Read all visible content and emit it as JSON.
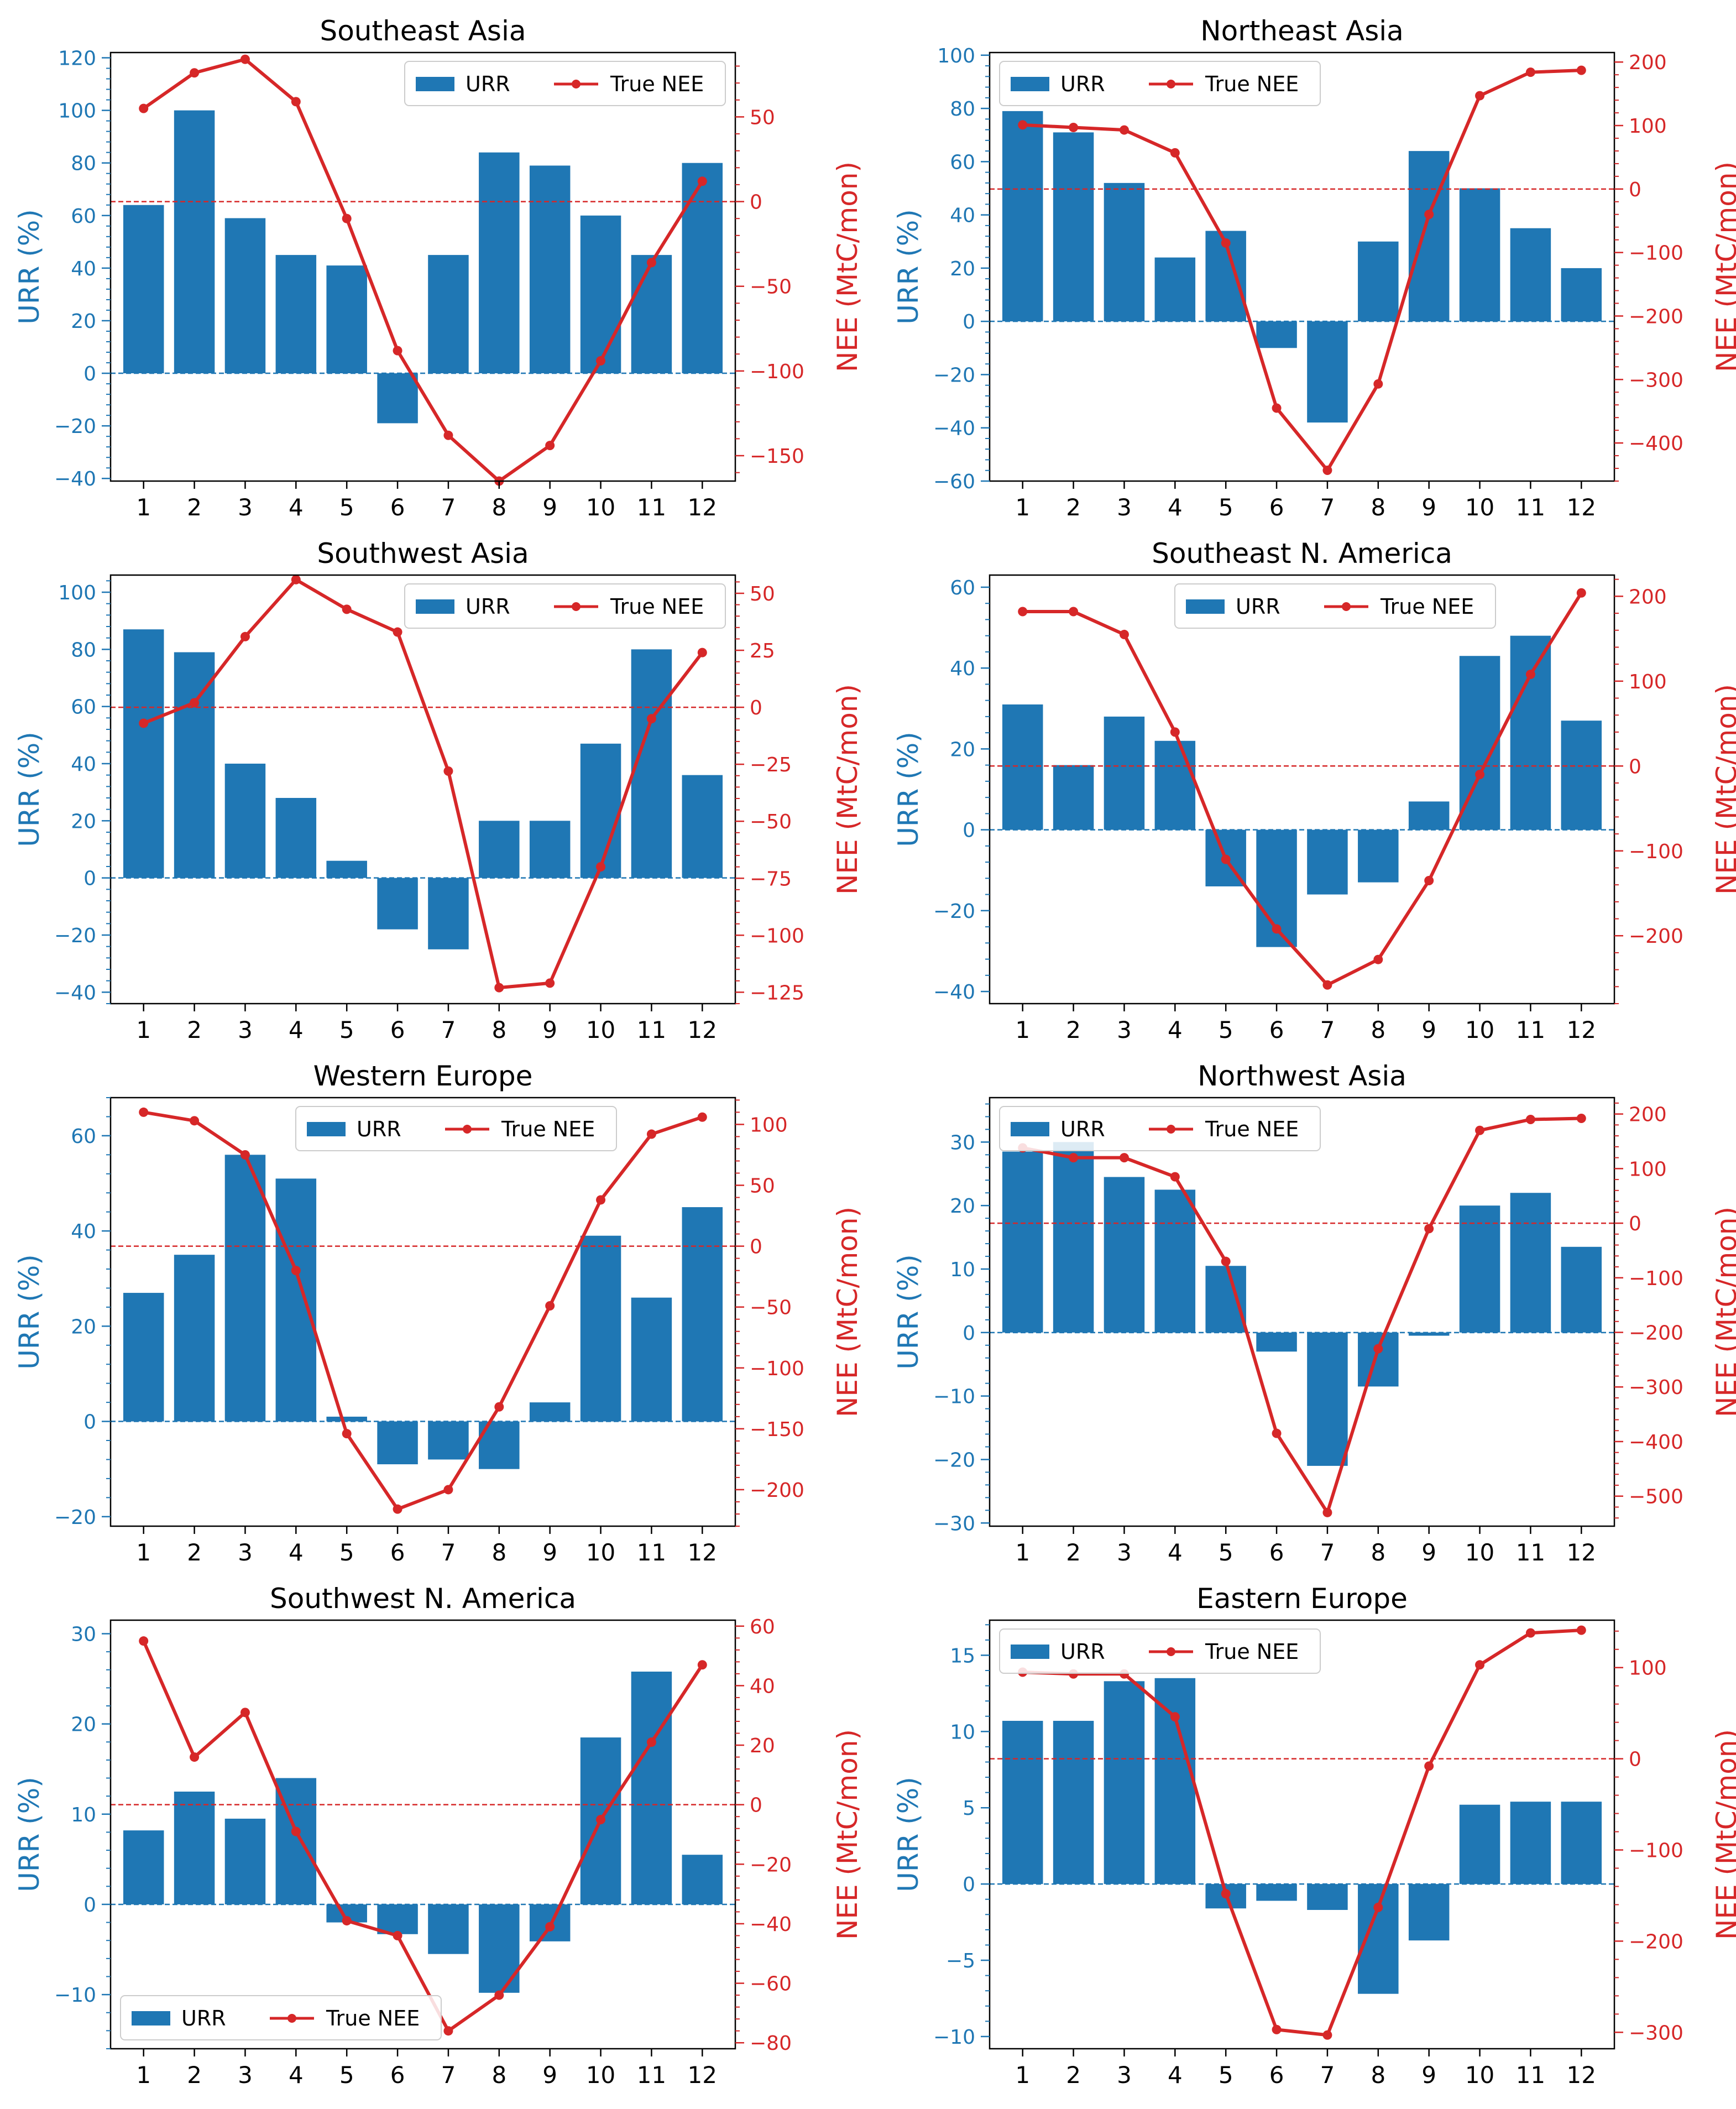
{
  "colors": {
    "urr": "#1f77b4",
    "nee": "#d62728",
    "axis": "#000000"
  },
  "legend_labels": {
    "bar": "URR",
    "line": "True NEE"
  },
  "chart_data": [
    {
      "type": "bar",
      "title": "Southeast Asia",
      "ylabel": "URR (%)",
      "y2label": "NEE (MtC/mon)",
      "categories": [
        "1",
        "2",
        "3",
        "4",
        "5",
        "6",
        "7",
        "8",
        "9",
        "10",
        "11",
        "12"
      ],
      "ylim": [
        -41,
        122
      ],
      "yticks": [
        -40,
        -20,
        0,
        20,
        40,
        60,
        80,
        100,
        120
      ],
      "y2lim": [
        -165,
        88
      ],
      "y2ticks": [
        -150,
        -100,
        -50,
        0,
        50
      ],
      "series": [
        {
          "name": "URR",
          "type": "bar",
          "values": [
            64,
            100,
            59,
            45,
            41,
            -19,
            45,
            84,
            79,
            60,
            45,
            80
          ]
        },
        {
          "name": "True NEE",
          "type": "line",
          "values": [
            55,
            76,
            84,
            59,
            -10,
            -88,
            -138,
            -165,
            -144,
            -94,
            -36,
            12
          ]
        }
      ],
      "legend": "top-right"
    },
    {
      "type": "bar",
      "title": "Northeast Asia",
      "ylabel": "URR (%)",
      "y2label": "NEE (MtC/mon)",
      "categories": [
        "1",
        "2",
        "3",
        "4",
        "5",
        "6",
        "7",
        "8",
        "9",
        "10",
        "11",
        "12"
      ],
      "ylim": [
        -60,
        101
      ],
      "yticks": [
        -60,
        -40,
        -20,
        0,
        20,
        40,
        60,
        80,
        100
      ],
      "y2lim": [
        -460,
        215
      ],
      "y2ticks": [
        -400,
        -300,
        -200,
        -100,
        0,
        100,
        200
      ],
      "series": [
        {
          "name": "URR",
          "type": "bar",
          "values": [
            79,
            71,
            52,
            24,
            34,
            -10,
            -38,
            30,
            64,
            50,
            35,
            20
          ]
        },
        {
          "name": "True NEE",
          "type": "line",
          "values": [
            101,
            97,
            93,
            57,
            -85,
            -345,
            -443,
            -307,
            -40,
            147,
            184,
            187
          ]
        }
      ],
      "legend": "top-left"
    },
    {
      "type": "bar",
      "title": "Southwest Asia",
      "ylabel": "URR (%)",
      "y2label": "NEE (MtC/mon)",
      "categories": [
        "1",
        "2",
        "3",
        "4",
        "5",
        "6",
        "7",
        "8",
        "9",
        "10",
        "11",
        "12"
      ],
      "ylim": [
        -44,
        106
      ],
      "yticks": [
        -40,
        -20,
        0,
        20,
        40,
        60,
        80,
        100
      ],
      "y2lim": [
        -130,
        58
      ],
      "y2ticks": [
        -125,
        -100,
        -75,
        -50,
        -25,
        0,
        25,
        50
      ],
      "series": [
        {
          "name": "URR",
          "type": "bar",
          "values": [
            87,
            79,
            40,
            28,
            6,
            -18,
            -25,
            20,
            20,
            47,
            80,
            36
          ]
        },
        {
          "name": "True NEE",
          "type": "line",
          "values": [
            -7,
            2,
            31,
            56,
            43,
            33,
            -28,
            -123,
            -121,
            -70,
            -5,
            24
          ]
        }
      ],
      "legend": "top-right"
    },
    {
      "type": "bar",
      "title": "Southeast N. America",
      "ylabel": "URR (%)",
      "y2label": "NEE (MtC/mon)",
      "categories": [
        "1",
        "2",
        "3",
        "4",
        "5",
        "6",
        "7",
        "8",
        "9",
        "10",
        "11",
        "12"
      ],
      "ylim": [
        -43,
        63
      ],
      "yticks": [
        -40,
        -20,
        0,
        20,
        40,
        60
      ],
      "y2lim": [
        -280,
        225
      ],
      "y2ticks": [
        -200,
        -100,
        0,
        100,
        200
      ],
      "series": [
        {
          "name": "URR",
          "type": "bar",
          "values": [
            31,
            16,
            28,
            22,
            -14,
            -29,
            -16,
            -13,
            7,
            43,
            48,
            27
          ]
        },
        {
          "name": "True NEE",
          "type": "line",
          "values": [
            182,
            182,
            155,
            40,
            -110,
            -192,
            -258,
            -228,
            -135,
            -10,
            108,
            204
          ]
        }
      ],
      "legend": "top-center"
    },
    {
      "type": "bar",
      "title": "Western Europe",
      "ylabel": "URR (%)",
      "y2label": "NEE (MtC/mon)",
      "categories": [
        "1",
        "2",
        "3",
        "4",
        "5",
        "6",
        "7",
        "8",
        "9",
        "10",
        "11",
        "12"
      ],
      "ylim": [
        -22,
        68
      ],
      "yticks": [
        -20,
        0,
        20,
        40,
        60
      ],
      "y2lim": [
        -230,
        122
      ],
      "y2ticks": [
        -200,
        -150,
        -100,
        -50,
        0,
        50,
        100
      ],
      "series": [
        {
          "name": "URR",
          "type": "bar",
          "values": [
            27,
            35,
            56,
            51,
            1,
            -9,
            -8,
            -10,
            4,
            39,
            26,
            45
          ]
        },
        {
          "name": "True NEE",
          "type": "line",
          "values": [
            110,
            103,
            75,
            -20,
            -154,
            -216,
            -200,
            -132,
            -49,
            38,
            92,
            106
          ]
        }
      ],
      "legend": "top-center"
    },
    {
      "type": "bar",
      "title": "Northwest Asia",
      "ylabel": "URR (%)",
      "y2label": "NEE (MtC/mon)",
      "categories": [
        "1",
        "2",
        "3",
        "4",
        "5",
        "6",
        "7",
        "8",
        "9",
        "10",
        "11",
        "12"
      ],
      "ylim": [
        -30.5,
        37
      ],
      "yticks": [
        -30,
        -20,
        -10,
        0,
        10,
        20,
        30
      ],
      "y2lim": [
        -555,
        230
      ],
      "y2ticks": [
        -500,
        -400,
        -300,
        -200,
        -100,
        0,
        100,
        200
      ],
      "series": [
        {
          "name": "URR",
          "type": "bar",
          "values": [
            28.5,
            30,
            24.5,
            22.5,
            10.5,
            -3,
            -21,
            -8.5,
            -0.5,
            20,
            22,
            13.5
          ]
        },
        {
          "name": "True NEE",
          "type": "line",
          "values": [
            138,
            120,
            120,
            85,
            -70,
            -385,
            -530,
            -230,
            -10,
            170,
            190,
            192
          ]
        }
      ],
      "legend": "top-left"
    },
    {
      "type": "bar",
      "title": "Southwest N. America",
      "ylabel": "URR (%)",
      "y2label": "NEE (MtC/mon)",
      "categories": [
        "1",
        "2",
        "3",
        "4",
        "5",
        "6",
        "7",
        "8",
        "9",
        "10",
        "11",
        "12"
      ],
      "ylim": [
        -16,
        31.5
      ],
      "yticks": [
        -10,
        0,
        10,
        20,
        30
      ],
      "y2lim": [
        -82,
        62
      ],
      "y2ticks": [
        -80,
        -60,
        -40,
        -20,
        0,
        20,
        40,
        60
      ],
      "series": [
        {
          "name": "URR",
          "type": "bar",
          "values": [
            8.2,
            12.5,
            9.5,
            14,
            -2,
            -3.3,
            -5.5,
            -9.8,
            -4.1,
            18.5,
            25.8,
            5.5
          ]
        },
        {
          "name": "True NEE",
          "type": "line",
          "values": [
            55,
            16,
            31,
            -9,
            -39,
            -44,
            -76,
            -64,
            -41,
            -5,
            21,
            47
          ]
        }
      ],
      "legend": "bottom-left"
    },
    {
      "type": "bar",
      "title": "Eastern Europe",
      "ylabel": "URR (%)",
      "y2label": "NEE (MtC/mon)",
      "categories": [
        "1",
        "2",
        "3",
        "4",
        "5",
        "6",
        "7",
        "8",
        "9",
        "10",
        "11",
        "12"
      ],
      "ylim": [
        -10.8,
        17.3
      ],
      "yticks": [
        -10,
        -5,
        0,
        5,
        10,
        15
      ],
      "y2lim": [
        -318,
        152
      ],
      "y2ticks": [
        -300,
        -200,
        -100,
        0,
        100
      ],
      "series": [
        {
          "name": "URR",
          "type": "bar",
          "values": [
            10.7,
            10.7,
            13.3,
            13.5,
            -1.6,
            -1.1,
            -1.7,
            -7.2,
            -3.7,
            5.2,
            5.4,
            5.4
          ]
        },
        {
          "name": "True NEE",
          "type": "line",
          "values": [
            95,
            93,
            93,
            46,
            -148,
            -297,
            -303,
            -163,
            -8,
            103,
            138,
            141
          ]
        }
      ],
      "legend": "top-left"
    }
  ]
}
